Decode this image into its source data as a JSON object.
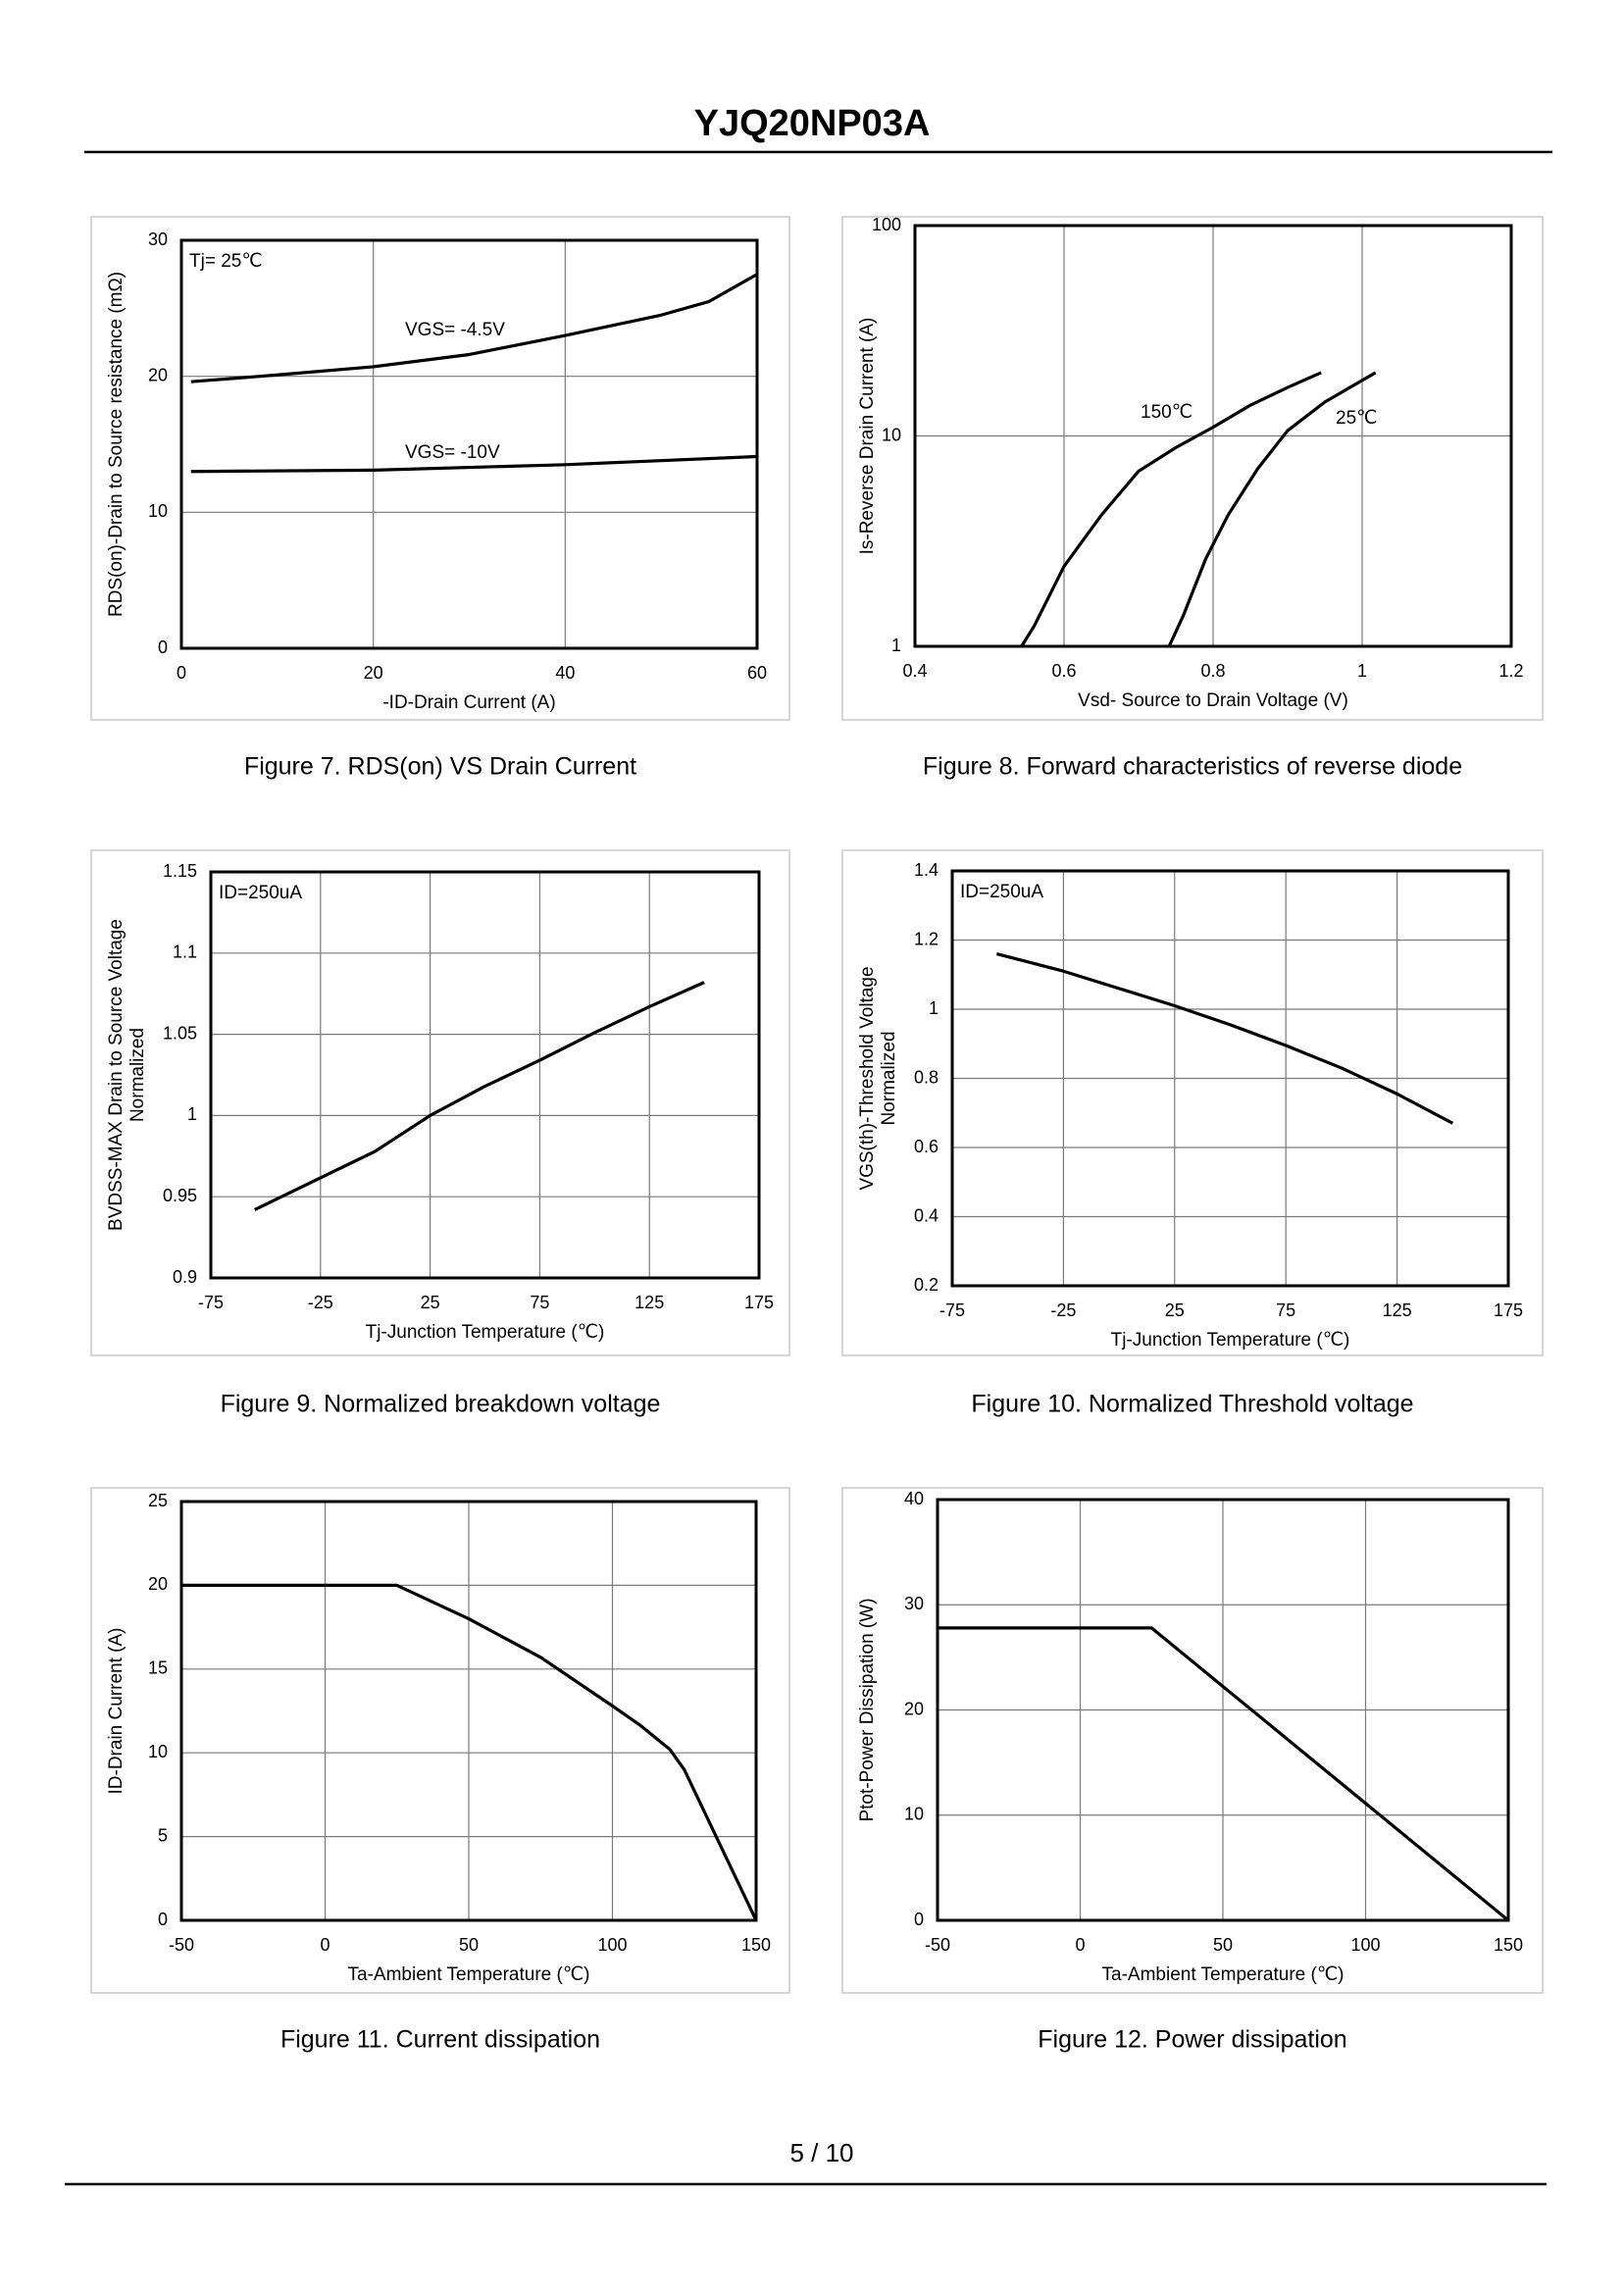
{
  "header": {
    "title": "YJQ20NP03A"
  },
  "footer": {
    "page": "5 / 10"
  },
  "chart_data": [
    {
      "type": "line",
      "title": "Figure 7.  RDS(on) VS Drain Current",
      "x_label": "-ID-Drain Current (A)",
      "y_label": [
        "RDS(on)-Drain to Source resistance (mΩ)"
      ],
      "annotation": "Tj= 25℃",
      "xlim": [
        0,
        60
      ],
      "xticks": [
        0,
        20,
        40,
        60
      ],
      "ylim": [
        0,
        30
      ],
      "yticks": [
        0,
        10,
        20,
        30
      ],
      "grid": true,
      "series": [
        {
          "name": "VGS= -4.5V",
          "color": "#000000",
          "x": [
            1,
            10,
            20,
            30,
            40,
            50,
            55,
            60
          ],
          "values": [
            19.6,
            20.1,
            20.7,
            21.6,
            23,
            24.5,
            25.5,
            27.5
          ]
        },
        {
          "name": "VGS= -10V",
          "color": "#000000",
          "x": [
            1,
            20,
            40,
            60
          ],
          "values": [
            13,
            13.1,
            13.5,
            14.1
          ]
        }
      ]
    },
    {
      "type": "line",
      "title": "Figure 8.  Forward characteristics of reverse diode",
      "x_label": "Vsd- Source to Drain Voltage (V)",
      "y_label": [
        "Is-Reverse Drain Current (A)"
      ],
      "xlim": [
        0.4,
        1.2
      ],
      "xticks": [
        0.4,
        0.6,
        0.8,
        1,
        1.2
      ],
      "ylim": [
        1,
        100
      ],
      "yticks": [
        1,
        10,
        100
      ],
      "log_y": true,
      "grid": true,
      "series": [
        {
          "name": "150℃",
          "color": "#000000",
          "x": [
            0.543,
            0.56,
            0.6,
            0.65,
            0.7,
            0.75,
            0.8,
            0.85,
            0.9,
            0.945
          ],
          "values": [
            1,
            1.25,
            2.4,
            4.2,
            6.8,
            8.8,
            11,
            14,
            17,
            20
          ]
        },
        {
          "name": "25℃",
          "color": "#000000",
          "x": [
            0.741,
            0.76,
            0.79,
            0.82,
            0.86,
            0.9,
            0.95,
            1.018
          ],
          "values": [
            1,
            1.4,
            2.6,
            4.2,
            7,
            10.6,
            14.5,
            20
          ]
        }
      ]
    },
    {
      "type": "line",
      "title": "Figure 9.  Normalized breakdown voltage",
      "x_label": "Tj-Junction  Temperature (℃)",
      "y_label": [
        "BVDSS-MAX Drain to Source Voltage",
        "Normalized"
      ],
      "annotation": "ID=250uA",
      "xlim": [
        -75,
        175
      ],
      "xticks": [
        -75,
        -25,
        25,
        75,
        125,
        175
      ],
      "ylim": [
        0.9,
        1.15
      ],
      "yticks": [
        0.9,
        0.95,
        1,
        1.05,
        1.1,
        1.15
      ],
      "grid": true,
      "series": [
        {
          "color": "#000000",
          "x": [
            -55,
            0,
            25,
            50,
            75,
            100,
            125,
            150
          ],
          "values": [
            0.942,
            0.978,
            1,
            1.018,
            1.034,
            1.051,
            1.067,
            1.082
          ]
        }
      ]
    },
    {
      "type": "line",
      "title": "Figure 10.  Normalized Threshold voltage",
      "x_label": "Tj-Junction  Temperature (℃)",
      "y_label": [
        "VGS(th)-Threshold  Voltage",
        "Normalized"
      ],
      "annotation": "ID=250uA",
      "xlim": [
        -75,
        175
      ],
      "xticks": [
        -75,
        -25,
        25,
        75,
        125,
        175
      ],
      "ylim": [
        0.2,
        1.4
      ],
      "yticks": [
        0.2,
        0.4,
        0.6,
        0.8,
        1,
        1.2,
        1.4
      ],
      "grid": true,
      "series": [
        {
          "color": "#000000",
          "x": [
            -55,
            -25,
            0,
            25,
            50,
            75,
            100,
            125,
            150
          ],
          "values": [
            1.16,
            1.11,
            1.06,
            1.01,
            0.955,
            0.895,
            0.83,
            0.755,
            0.67
          ]
        }
      ]
    },
    {
      "type": "line",
      "title": "Figure 11.  Current dissipation",
      "x_label": "Ta-Ambient Temperature (℃)",
      "y_label": [
        "ID-Drain Current (A)"
      ],
      "xlim": [
        -50,
        150
      ],
      "xticks": [
        -50,
        0,
        50,
        100,
        150
      ],
      "ylim": [
        0,
        25
      ],
      "yticks": [
        0,
        5,
        10,
        15,
        20,
        25
      ],
      "grid": true,
      "series": [
        {
          "color": "#000000",
          "x": [
            -50,
            25,
            50,
            75,
            100,
            110,
            120,
            125,
            130,
            140,
            150
          ],
          "values": [
            20,
            20,
            18,
            15.7,
            12.8,
            11.6,
            10.2,
            9,
            7.2,
            3.6,
            0
          ]
        }
      ]
    },
    {
      "type": "line",
      "title": "Figure 12.  Power dissipation",
      "x_label": "Ta-Ambient Temperature (℃)",
      "y_label": [
        "Ptot-Power Dissipation (W)"
      ],
      "xlim": [
        -50,
        150
      ],
      "xticks": [
        -50,
        0,
        50,
        100,
        150
      ],
      "ylim": [
        0,
        40
      ],
      "yticks": [
        0,
        10,
        20,
        30,
        40
      ],
      "grid": true,
      "series": [
        {
          "color": "#000000",
          "x": [
            -50,
            25,
            150
          ],
          "values": [
            27.8,
            27.8,
            0
          ]
        }
      ]
    }
  ]
}
